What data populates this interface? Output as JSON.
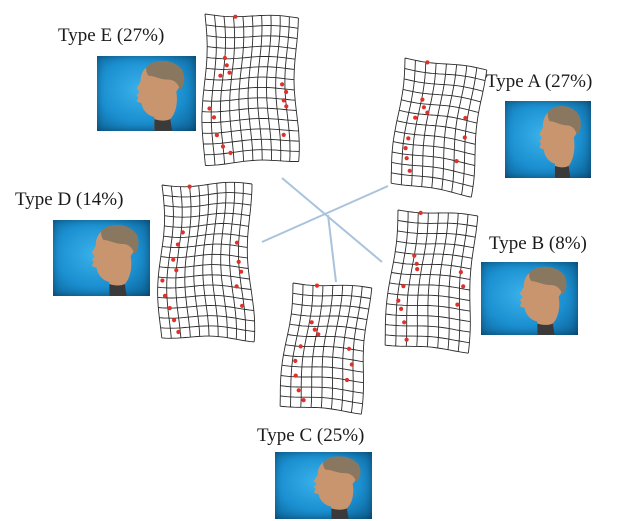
{
  "figure": {
    "connector_color": "#a9c3dc",
    "grid_color": "#2b2b2b",
    "point_color": "#e0302a",
    "photo_background": "#1b8fd0"
  },
  "types": [
    {
      "id": "E",
      "label": "Type E (27%)",
      "percent": 27
    },
    {
      "id": "A",
      "label": "Type A (27%)",
      "percent": 27
    },
    {
      "id": "D",
      "label": "Type D (14%)",
      "percent": 14
    },
    {
      "id": "B",
      "label": "Type B (8%)",
      "percent": 8
    },
    {
      "id": "C",
      "label": "Type C (25%)",
      "percent": 25
    }
  ]
}
